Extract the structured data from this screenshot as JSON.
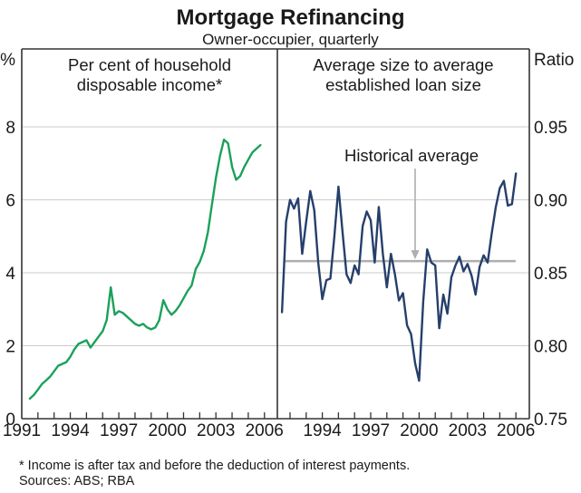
{
  "title": "Mortgage Refinancing",
  "subtitle": "Owner-occupier, quarterly",
  "footnote": "* Income is after tax and before the deduction of interest payments.",
  "sources": "Sources: ABS; RBA",
  "colors": {
    "green": "#1BA15A",
    "navy": "#263F6B",
    "grid": "#CBCBCB",
    "frame": "#333333",
    "gray": "#AEAEAE",
    "text": "#1A1A1A",
    "background": "#FFFFFF"
  },
  "chart_data": [
    {
      "type": "line",
      "panel": "left",
      "title": "Per cent of household disposable income*",
      "unit_label": "%",
      "x_start": 1991.5,
      "x_step": 0.25,
      "xtick_years": [
        1991,
        1994,
        1997,
        2000,
        2003,
        2006
      ],
      "xtick_labels": [
        "1991",
        "1994",
        "1997",
        "2000",
        "2003",
        "2006"
      ],
      "ytick_values": [
        0,
        2,
        4,
        6,
        8
      ],
      "ytick_labels": [
        "0",
        "2",
        "4",
        "6",
        "8"
      ],
      "ylim": [
        0,
        8
      ],
      "grid": true,
      "series": [
        {
          "name": "refinancing-per-cent-of-income",
          "color": "#1BA15A",
          "values": [
            0.55,
            0.65,
            0.8,
            0.95,
            1.05,
            1.15,
            1.3,
            1.45,
            1.5,
            1.55,
            1.7,
            1.9,
            2.05,
            2.1,
            2.15,
            1.95,
            2.1,
            2.25,
            2.4,
            2.7,
            3.6,
            2.85,
            2.95,
            2.9,
            2.8,
            2.7,
            2.6,
            2.55,
            2.6,
            2.5,
            2.45,
            2.5,
            2.7,
            3.25,
            3.0,
            2.85,
            2.95,
            3.1,
            3.3,
            3.5,
            3.65,
            4.1,
            4.3,
            4.6,
            5.1,
            5.85,
            6.6,
            7.2,
            7.65,
            7.55,
            6.9,
            6.55,
            6.65,
            6.9,
            7.1,
            7.3,
            7.4,
            7.5
          ]
        }
      ]
    },
    {
      "type": "line",
      "panel": "right",
      "title": "Average size to average established loan size",
      "unit_label": "Ratio",
      "x_start": 1991.5,
      "x_step": 0.25,
      "xtick_years": [
        1994,
        1997,
        2000,
        2003,
        2006
      ],
      "xtick_labels": [
        "1994",
        "1997",
        "2000",
        "2003",
        "2006"
      ],
      "ytick_values": [
        0.75,
        0.8,
        0.85,
        0.9,
        0.95
      ],
      "ytick_labels": [
        "0.75",
        "0.80",
        "0.85",
        "0.90",
        "0.95"
      ],
      "ylim": [
        0.75,
        0.95
      ],
      "grid": true,
      "annotation": {
        "label": "Historical average",
        "value": 0.858
      },
      "series": [
        {
          "name": "loan-size-ratio",
          "color": "#263F6B",
          "values": [
            0.823,
            0.885,
            0.9,
            0.894,
            0.901,
            0.863,
            0.885,
            0.906,
            0.893,
            0.857,
            0.832,
            0.845,
            0.846,
            0.875,
            0.909,
            0.878,
            0.849,
            0.843,
            0.855,
            0.849,
            0.882,
            0.892,
            0.886,
            0.857,
            0.895,
            0.863,
            0.84,
            0.863,
            0.849,
            0.831,
            0.836,
            0.814,
            0.808,
            0.788,
            0.776,
            0.83,
            0.866,
            0.857,
            0.855,
            0.812,
            0.835,
            0.822,
            0.847,
            0.855,
            0.861,
            0.851,
            0.856,
            0.848,
            0.835,
            0.854,
            0.862,
            0.857,
            0.877,
            0.895,
            0.908,
            0.913,
            0.896,
            0.897,
            0.918
          ]
        }
      ]
    }
  ]
}
